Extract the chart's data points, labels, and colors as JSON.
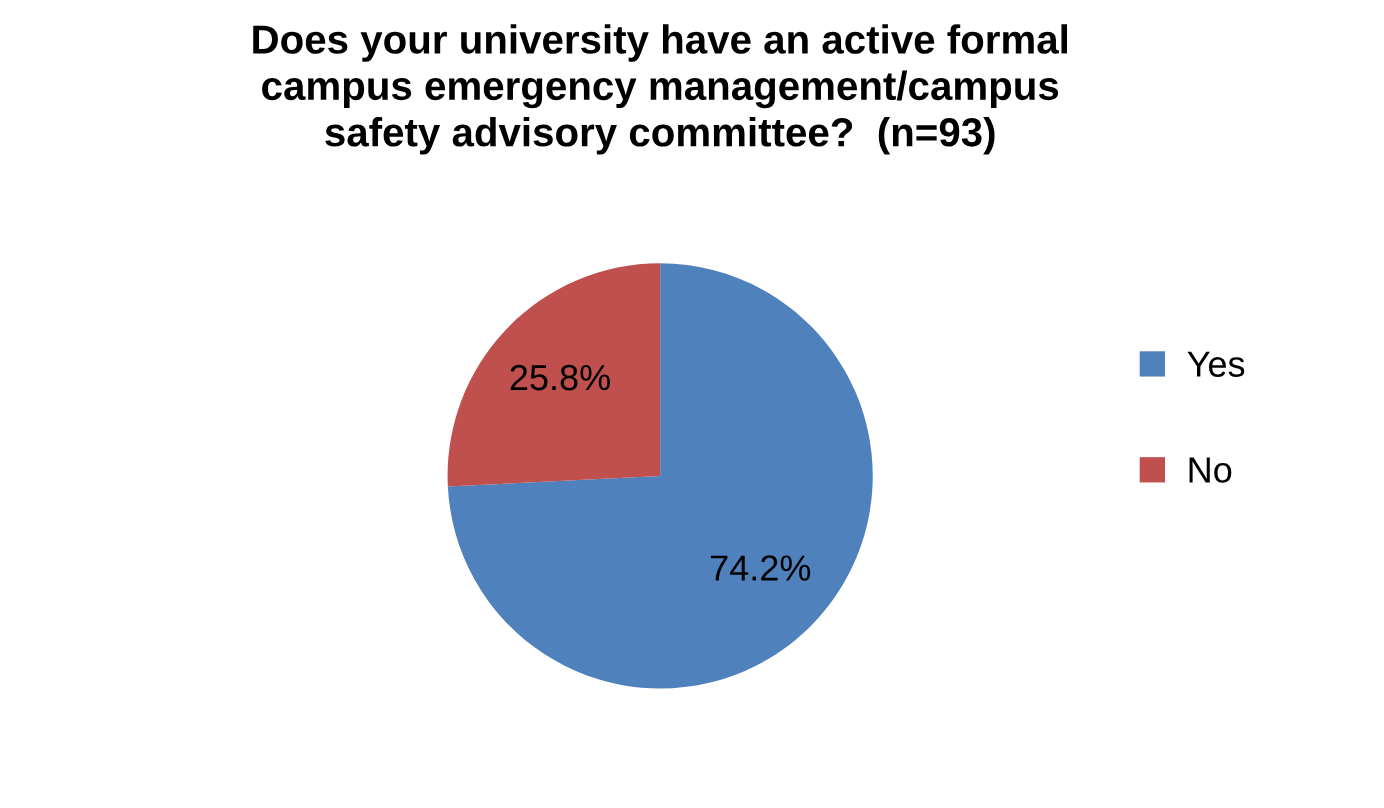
{
  "chart_data": {
    "type": "pie",
    "title": "Does your university have an active formal\ncampus emergency management/campus\nsafety advisory committee?  (n=93)",
    "categories": [
      "Yes",
      "No"
    ],
    "values": [
      74.2,
      25.8
    ],
    "colors": [
      "#4f81bd",
      "#c0504d"
    ],
    "value_labels": [
      "74.2%",
      "25.8%"
    ],
    "legend": "right"
  }
}
